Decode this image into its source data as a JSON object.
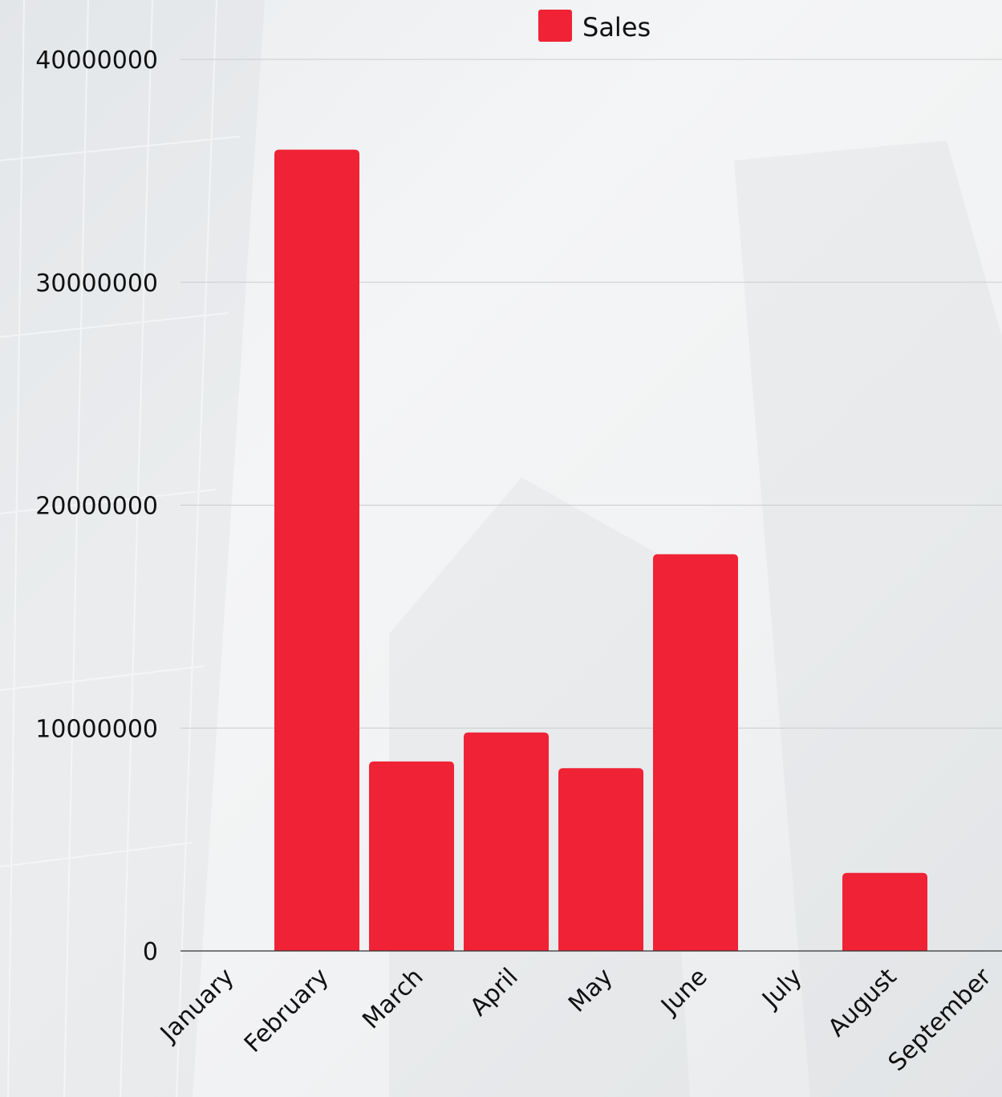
{
  "chart_data": {
    "type": "bar",
    "categories": [
      "January",
      "February",
      "March",
      "April",
      "May",
      "June",
      "July",
      "August",
      "September"
    ],
    "series": [
      {
        "name": "Sales",
        "color": "#f02235",
        "values": [
          0,
          35950000,
          8500000,
          9800000,
          8200000,
          17800000,
          0,
          3500000,
          0
        ]
      }
    ],
    "ylim": [
      0,
      40000000
    ],
    "yticks": [
      "0",
      "10000000",
      "20000000",
      "30000000",
      "40000000"
    ],
    "grid": true,
    "legend": {
      "position": "top-center"
    }
  }
}
